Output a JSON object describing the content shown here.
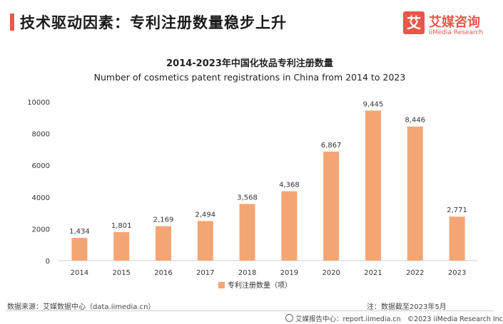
{
  "header": {
    "title": "技术驱动因素：专利注册数量稳步上升"
  },
  "logo": {
    "mark": "艾",
    "name_cn": "艾媒咨询",
    "name_en": "iiMedia Research"
  },
  "chart_data": {
    "type": "bar",
    "title": "2014-2023年中国化妆品专利注册数量",
    "subtitle": "Number of cosmetics patent registrations in China from 2014 to 2023",
    "categories": [
      "2014",
      "2015",
      "2016",
      "2017",
      "2018",
      "2019",
      "2020",
      "2021",
      "2022",
      "2023"
    ],
    "series": [
      {
        "name": "专利注册数量（项）",
        "values": [
          1434,
          1801,
          2169,
          2494,
          3568,
          4368,
          6867,
          9445,
          8446,
          2771
        ],
        "labels": [
          "1,434",
          "1,801",
          "2,169",
          "2,494",
          "3,568",
          "4,368",
          "6,867",
          "9,445",
          "8,446",
          "2,771"
        ]
      }
    ],
    "yticks": [
      "0",
      "2000",
      "4000",
      "6000",
      "8000",
      "10000"
    ],
    "ylim": [
      0,
      10000
    ],
    "bar_color": "#f4a574",
    "legend_position": "bottom"
  },
  "footer": {
    "source": "数据来源：艾媒数据中心（data.iimedia.cn）",
    "note": "注：数据截至2023年5月",
    "report_center": "艾媒报告中心：report.iimedia.cn",
    "copyright": "©2023  iiMedia Research  Inc"
  }
}
